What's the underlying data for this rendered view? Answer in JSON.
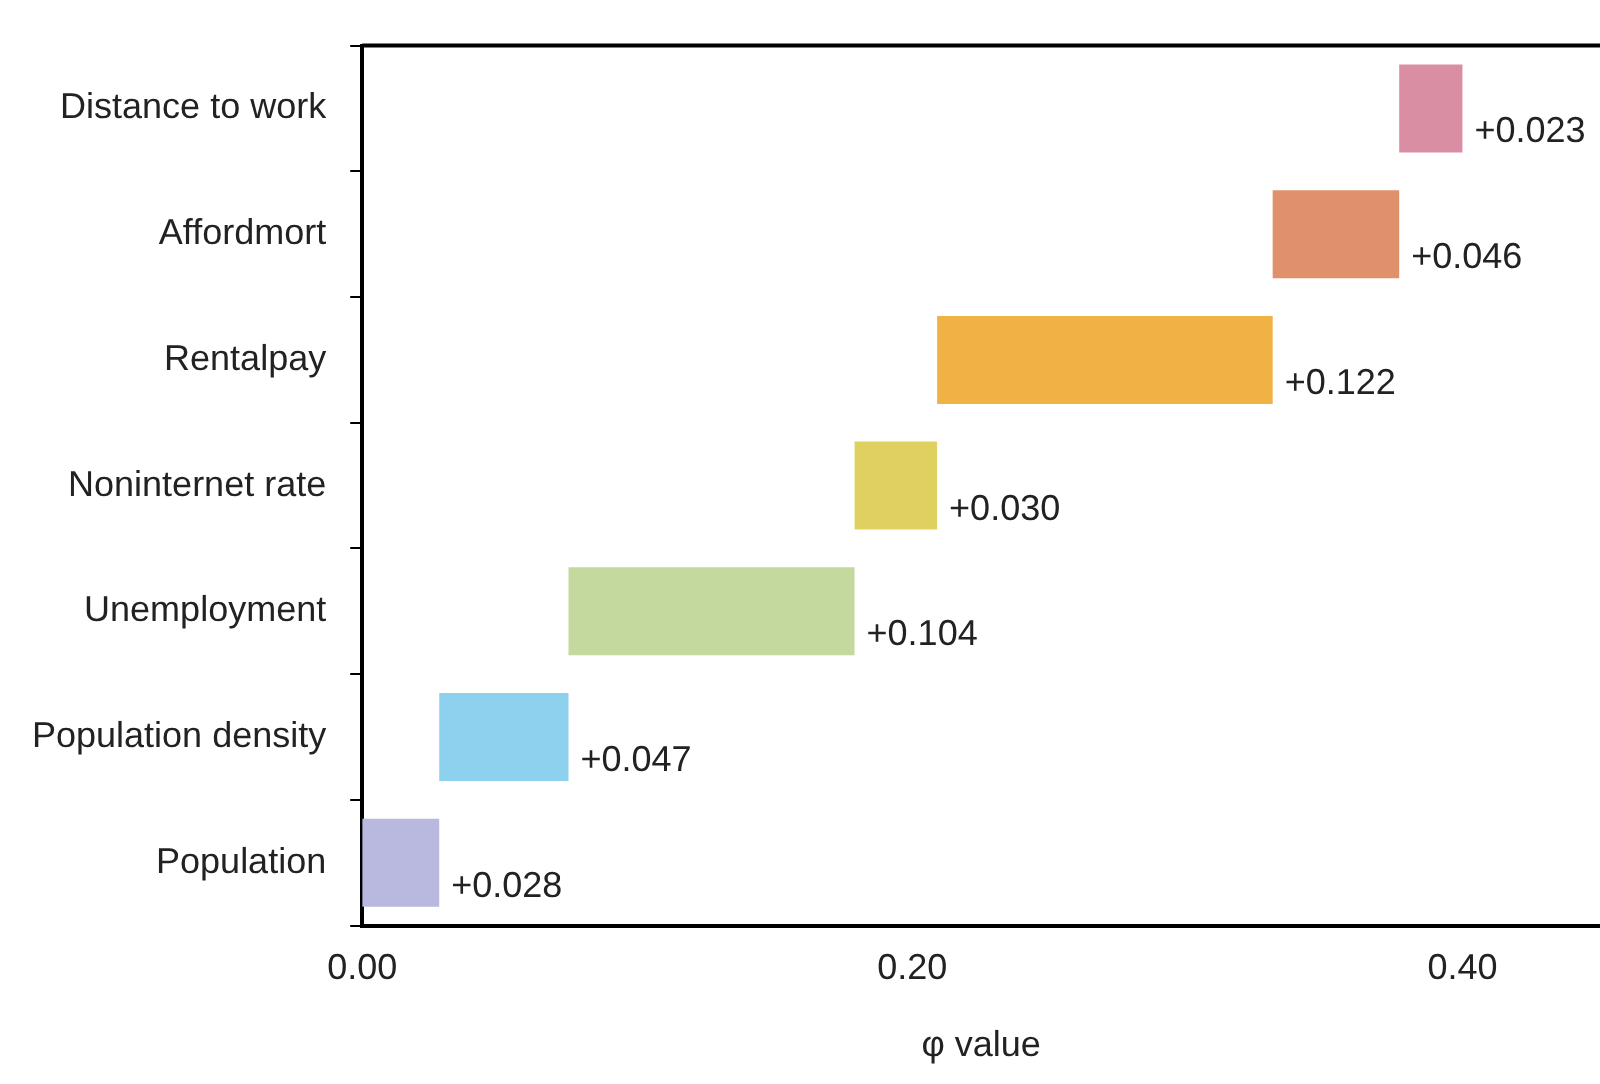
{
  "chart_data": {
    "type": "bar",
    "orientation": "horizontal",
    "xlabel": "φ value",
    "categories": [
      "Distance to work",
      "Affordmort",
      "Rentalpay",
      "Noninternet rate",
      "Unemployment",
      "Population density",
      "Population"
    ],
    "values": [
      0.023,
      0.046,
      0.122,
      0.03,
      0.104,
      0.047,
      0.028
    ],
    "base": [
      0.377,
      0.331,
      0.209,
      0.179,
      0.075,
      0.028,
      0
    ],
    "colors": [
      "#d98ea3",
      "#e0906a",
      "#f0b245",
      "#e0d060",
      "#c3d99e",
      "#8ed1ee",
      "#b9b9e0"
    ],
    "value_labels": [
      "+0.023",
      "+0.046",
      "+0.122",
      "+0.030",
      "+0.104",
      "+0.047",
      "+0.028"
    ],
    "xlim": [
      0,
      0.45
    ],
    "xticks": [
      {
        "value": 0,
        "label": "0.00"
      },
      {
        "value": 0.2,
        "label": "0.20"
      },
      {
        "value": 0.4,
        "label": "0.40"
      }
    ],
    "grid": false,
    "legend": false
  }
}
